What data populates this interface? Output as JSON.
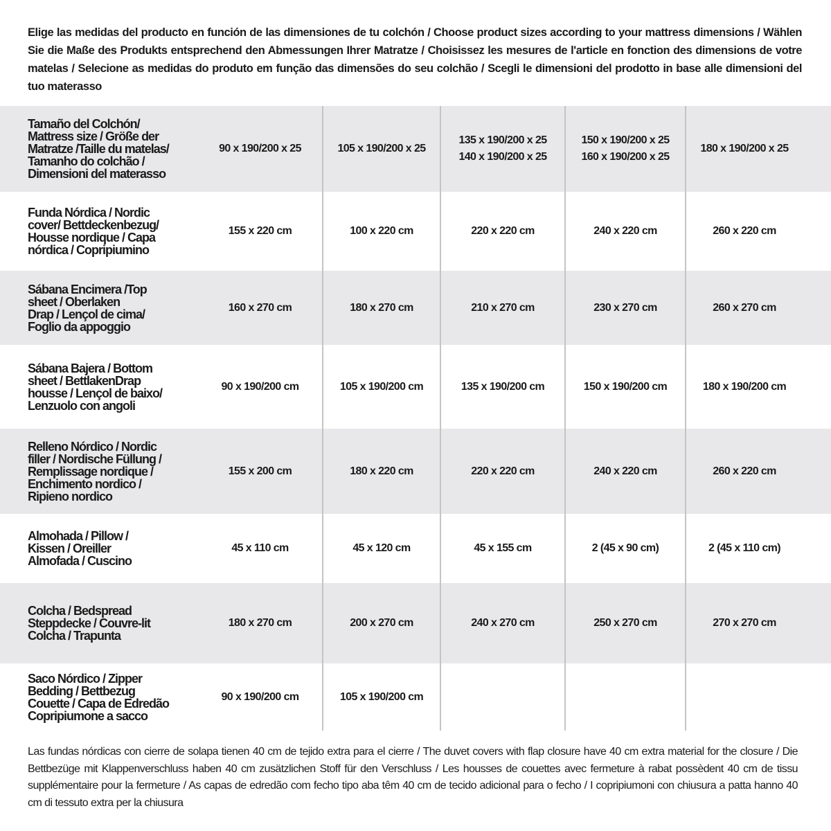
{
  "title": "Elige las medidas del producto en función de las dimensiones de tu colchón / Choose product sizes according to your mattress dimensions / Wählen Sie die Maße des Produkts entsprechend den Abmessungen Ihrer Matratze / Choisissez les mesures de l'article en fonction des dimensions de votre matelas / Selecione as medidas do produto em função das dimensões do seu colchão / Scegli le dimensioni del prodotto in base alle dimensioni del tuo materasso",
  "table": {
    "rows": [
      {
        "label": "Tamaño del Colchón/\nMattress size / Größe der\nMatratze /Taille du matelas/\nTamanho do colchão /\nDimensioni del materasso",
        "values": [
          "90 x 190/200 x 25",
          "105 x 190/200 x 25",
          "135 x 190/200 x 25\n140 x 190/200 x 25",
          "150 x 190/200 x 25\n160 x 190/200 x 25",
          "180 x 190/200 x 25"
        ]
      },
      {
        "label": "Funda Nórdica /  Nordic\ncover/ Bettdeckenbezug/\nHousse nordique  / Capa\nnórdica / Copripiumino",
        "values": [
          "155 x 220 cm",
          "100 x 220 cm",
          "220 x 220 cm",
          "240 x 220 cm",
          "260 x 220 cm"
        ]
      },
      {
        "label": "Sábana Encimera /Top\nsheet / Oberlaken\nDrap / Lençol de cima/\nFoglio da appoggio",
        "values": [
          "160 x 270 cm",
          "180 x 270 cm",
          "210 x 270 cm",
          "230 x 270 cm",
          "260 x 270 cm"
        ]
      },
      {
        "label": "Sábana Bajera / Bottom\nsheet / BettlakenDrap\nhousse / Lençol de baixo/\nLenzuolo con angoli",
        "values": [
          "90 x 190/200 cm",
          "105 x 190/200 cm",
          "135 x 190/200 cm",
          "150 x 190/200 cm",
          "180 x 190/200 cm"
        ]
      },
      {
        "label": "Relleno Nórdico / Nordic\nfiller / Nordische Füllung /\nRemplissage nordique /\nEnchimento nordico /\nRipieno nordico",
        "values": [
          "155 x 200 cm",
          "180 x 220 cm",
          "220 x 220 cm",
          "240 x 220 cm",
          "260 x 220 cm"
        ]
      },
      {
        "label": "Almohada  / Pillow /\nKissen / Oreiller\nAlmofada / Cuscino",
        "values": [
          "45 x 110 cm",
          "45 x 120 cm",
          "45 x 155 cm",
          "2 (45 x 90 cm)",
          "2 (45 x 110 cm)"
        ]
      },
      {
        "label": "Colcha / Bedspread\nSteppdecke / Couvre-lit\nColcha / Trapunta",
        "values": [
          "180 x 270 cm",
          "200 x 270 cm",
          "240 x 270 cm",
          "250 x 270 cm",
          "270 x 270 cm"
        ]
      },
      {
        "label": "Saco Nórdico / Zipper\nBedding / Bettbezug\nCouette  / Capa de Edredão\nCopripiumone a sacco",
        "values": [
          "90 x 190/200 cm",
          "105 x 190/200 cm",
          "",
          "",
          ""
        ]
      }
    ]
  },
  "footer": "Las fundas nórdicas con cierre de solapa tienen 40 cm de tejido extra para el cierre  / The duvet covers with flap closure have 40 cm extra material for the closure / Die Bettbezüge mit Klappenverschluss haben 40 cm zusätzlichen Stoff für den Verschluss / Les housses de couettes avec fermeture à rabat possèdent 40 cm de tissu supplémentaire pour la fermeture / As capas de edredão com fecho tipo aba têm 40 cm de tecido adicional para o fecho / I copripiumoni con chiusura a patta hanno 40 cm di tessuto extra per la chiusura",
  "colors": {
    "row_alt": "#e8e8ea",
    "divider": "#c4c4c4",
    "text": "#1a1a1a"
  }
}
